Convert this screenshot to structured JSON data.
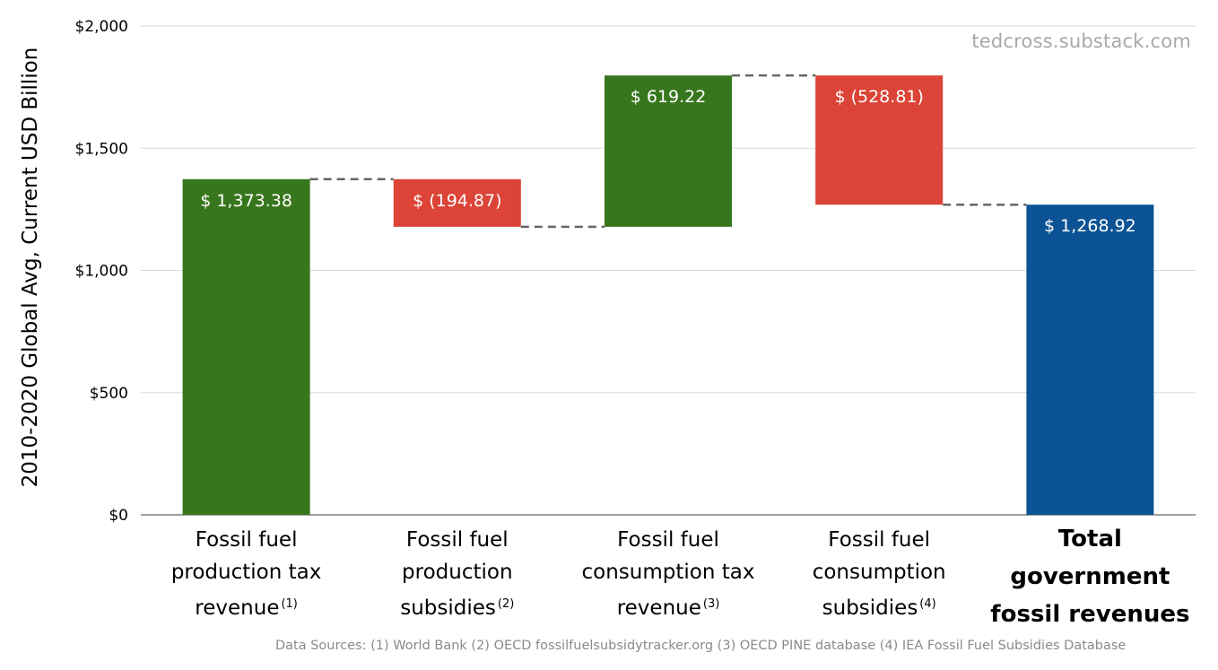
{
  "chart_data": {
    "type": "waterfall",
    "title": "",
    "ylabel": "2010-2020 Global Avg, Current USD Billion",
    "xlabel": "",
    "ylim": [
      0,
      2000
    ],
    "yticks": [
      0,
      500,
      1000,
      1500,
      2000
    ],
    "ytick_labels": [
      "$0",
      "$500",
      "$1,000",
      "$1,500",
      "$2,000"
    ],
    "grid": true,
    "categories": [
      {
        "line1": "Fossil fuel",
        "line2": "production tax",
        "line3": "revenue",
        "note": "(1)"
      },
      {
        "line1": "Fossil fuel",
        "line2": "production",
        "line3": "subsidies",
        "note": "(2)"
      },
      {
        "line1": "Fossil fuel",
        "line2": "consumption tax",
        "line3": "revenue",
        "note": "(3)"
      },
      {
        "line1": "Fossil fuel",
        "line2": "consumption",
        "line3": "subsidies",
        "note": "(4)"
      },
      {
        "line1": "Total",
        "line2": "government",
        "line3": "fossil revenues",
        "note": ""
      }
    ],
    "values": [
      1373.38,
      -194.87,
      619.22,
      -528.81,
      1268.92
    ],
    "kinds": [
      "increase",
      "decrease",
      "increase",
      "decrease",
      "total"
    ],
    "data_labels": [
      "$ 1,373.38",
      "$ (194.87)",
      "$ 619.22",
      "$ (528.81)",
      "$ 1,268.92"
    ],
    "colors": {
      "increase": "#38761d",
      "decrease": "#db4437",
      "total": "#0b5394",
      "connector": "#666666",
      "grid": "#d9d9d9"
    }
  },
  "watermark": "tedcross.substack.com",
  "footer": "Data Sources: (1) World Bank (2) OECD fossilfuelsubsidytracker.org (3) OECD PINE database (4) IEA Fossil Fuel Subsidies Database"
}
